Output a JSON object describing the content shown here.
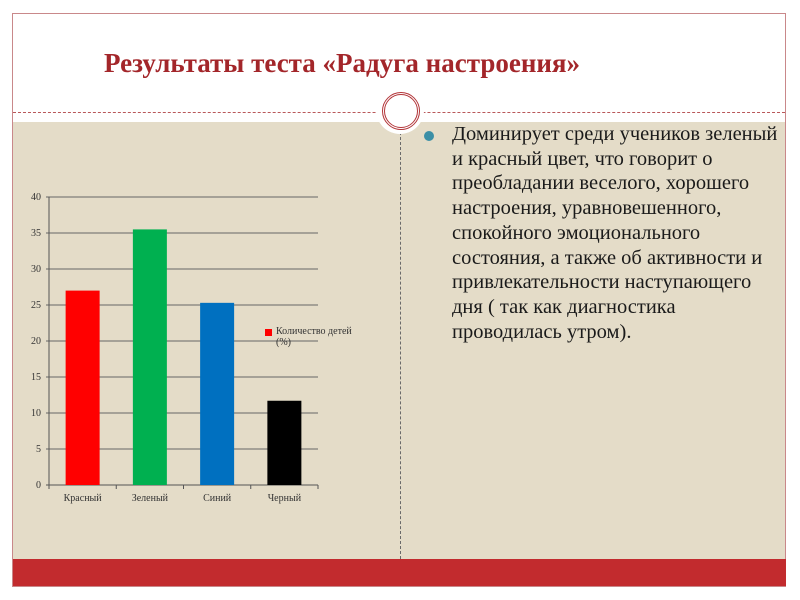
{
  "title": "Результаты теста «Радуга настроения»",
  "body_text": "Доминирует среди учеников зеленый и красный цвет, что говорит о преобладании веселого, хорошего настроения, уравновешенного, спокойного эмоционального состояния, а также об активности и привлекательности наступающего дня ( так как диагностика проводилась утром).",
  "colors": {
    "title": "#a3262a",
    "band": "#c22b2e",
    "background": "#e4dcc8"
  },
  "chart_data": {
    "type": "bar",
    "categories": [
      "Красный",
      "Зеленый",
      "Синий",
      "Черный"
    ],
    "series": [
      {
        "name": "Количество детей (%)",
        "values": [
          27,
          35.5,
          25.3,
          11.7
        ]
      }
    ],
    "bar_colors": [
      "#ff0000",
      "#00b050",
      "#0070c0",
      "#000000"
    ],
    "legend_color": "#ff0000",
    "yticks": [
      0,
      5,
      10,
      15,
      20,
      25,
      30,
      35,
      40
    ],
    "ylim": [
      0,
      40
    ],
    "grid": true,
    "legend_placement": "right",
    "title": "",
    "xlabel": "",
    "ylabel": ""
  }
}
